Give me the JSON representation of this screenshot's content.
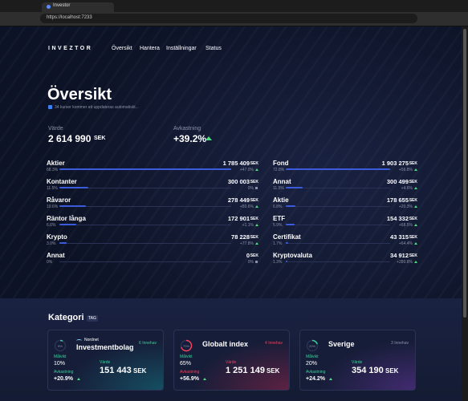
{
  "browser": {
    "tab_title": "Investor",
    "url": "https://localhost:7233"
  },
  "nav": {
    "logo": "INVEZTOR",
    "links": [
      "Översikt",
      "Hantera",
      "Inställningar",
      "Status"
    ]
  },
  "header": {
    "title": "Översikt",
    "subtitle": "34 kurser kommer att uppdateras automatiskt..."
  },
  "summary": {
    "value_label": "Värde",
    "value": "2 614 990",
    "currency": "SEK",
    "return_label": "Avkastning",
    "return": "+39.2%"
  },
  "lists": [
    {
      "rows": [
        {
          "name": "Aktier",
          "share": "68.3%",
          "value": "1 785 409",
          "currency": "SEK",
          "return": "+47.0%"
        },
        {
          "name": "Kontanter",
          "share": "11.5%",
          "value": "300 003",
          "currency": "SEK",
          "return": "0%"
        },
        {
          "name": "Råvaror",
          "share": "10.6%",
          "value": "278 449",
          "currency": "SEK",
          "return": "+50.6%"
        },
        {
          "name": "Räntor långa",
          "share": "6.6%",
          "value": "172 901",
          "currency": "SEK",
          "return": "+1.1%"
        },
        {
          "name": "Krypto",
          "share": "3.0%",
          "value": "78 228",
          "currency": "SEK",
          "return": "+77.8%"
        },
        {
          "name": "Annat",
          "share": "0%",
          "value": "0",
          "currency": "SEK",
          "return": "0%"
        }
      ]
    },
    {
      "rows": [
        {
          "name": "Fond",
          "share": "72.8%",
          "value": "1 903 275",
          "currency": "SEK",
          "return": "+56.8%"
        },
        {
          "name": "Annat",
          "share": "11.5%",
          "value": "300 499",
          "currency": "SEK",
          "return": "+4.6%"
        },
        {
          "name": "Aktie",
          "share": "6.8%",
          "value": "178 655",
          "currency": "SEK",
          "return": "+20.3%"
        },
        {
          "name": "ETF",
          "share": "5.9%",
          "value": "154 332",
          "currency": "SEK",
          "return": "+68.5%"
        },
        {
          "name": "Certifikat",
          "share": "1.7%",
          "value": "43 315",
          "currency": "SEK",
          "return": "+64.4%"
        },
        {
          "name": "Kryptovaluta",
          "share": "1.3%",
          "value": "34 912",
          "currency": "SEK",
          "return": "+280.8%"
        }
      ]
    }
  ],
  "category": {
    "title": "Kategori",
    "badge": "TAG",
    "cards": [
      {
        "progress": "8%",
        "brand": "Nordnet",
        "name": "Investmentbolag",
        "holdings": "6 Innehav",
        "target_label": "Målvikt",
        "target": "10%",
        "return_label": "Avkastning",
        "return": "+20.9%",
        "value_label": "Värde",
        "value": "151 443",
        "currency": "SEK"
      },
      {
        "progress": "70%",
        "name": "Globalt index",
        "holdings": "4 Innehav",
        "target_label": "Målvikt",
        "target": "65%",
        "return_label": "Avkastning",
        "return": "+56.9%",
        "value_label": "Värde",
        "value": "1 251 149",
        "currency": "SEK"
      },
      {
        "progress": "20%",
        "name": "Sverige",
        "holdings": "3 Innehav",
        "target_label": "Målvikt",
        "target": "20%",
        "return_label": "Avkastning",
        "return": "+24.2%",
        "value_label": "Värde",
        "value": "354 190",
        "currency": "SEK"
      }
    ]
  }
}
